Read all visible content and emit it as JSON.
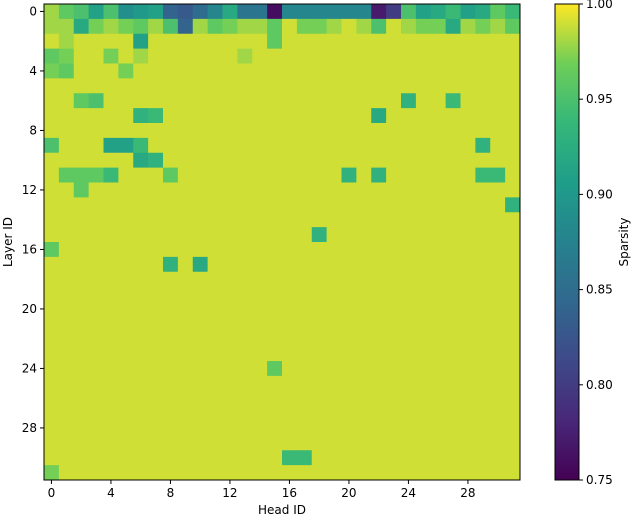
{
  "chart_data": {
    "type": "heatmap",
    "title": "",
    "xlabel": "Head ID",
    "ylabel": "Layer ID",
    "x_ticks": [
      "0",
      "4",
      "8",
      "12",
      "16",
      "20",
      "24",
      "28"
    ],
    "y_ticks": [
      "0",
      "4",
      "8",
      "12",
      "16",
      "20",
      "24",
      "28"
    ],
    "x_tick_values": [
      0,
      4,
      8,
      12,
      16,
      20,
      24,
      28
    ],
    "y_tick_values": [
      0,
      4,
      8,
      12,
      16,
      20,
      24,
      28
    ],
    "rows": 32,
    "cols": 32,
    "colormap": "viridis",
    "colorbar": {
      "label": "Sparsity",
      "range": [
        0.75,
        1.0
      ],
      "ticks": [
        "0.75",
        "0.80",
        "0.85",
        "0.90",
        "0.95",
        "1.00"
      ],
      "tick_values": [
        0.75,
        0.8,
        0.85,
        0.9,
        0.95,
        1.0
      ]
    },
    "values": [
      [
        0.98,
        0.96,
        0.95,
        0.91,
        0.95,
        0.89,
        0.9,
        0.91,
        0.84,
        0.83,
        0.85,
        0.88,
        0.92,
        0.86,
        0.86,
        0.76,
        0.88,
        0.88,
        0.88,
        0.88,
        0.88,
        0.88,
        0.77,
        0.8,
        0.95,
        0.91,
        0.92,
        0.94,
        0.91,
        0.92,
        0.96,
        0.94
      ],
      [
        0.98,
        0.98,
        0.92,
        0.97,
        0.98,
        0.97,
        0.96,
        0.98,
        0.95,
        0.84,
        0.98,
        0.96,
        0.97,
        0.98,
        0.98,
        0.96,
        0.99,
        0.97,
        0.97,
        0.98,
        0.99,
        0.98,
        0.95,
        0.99,
        0.98,
        0.97,
        0.97,
        0.92,
        0.98,
        0.97,
        0.98,
        0.96
      ],
      [
        0.99,
        0.98,
        0.99,
        0.99,
        0.99,
        0.99,
        0.91,
        0.99,
        0.99,
        0.99,
        0.99,
        0.99,
        0.99,
        0.99,
        0.99,
        0.96,
        0.99,
        0.99,
        0.99,
        0.99,
        0.99,
        0.99,
        0.99,
        0.99,
        0.99,
        0.99,
        0.99,
        0.99,
        0.99,
        0.99,
        0.99,
        0.99
      ],
      [
        0.96,
        0.97,
        0.99,
        0.99,
        0.97,
        0.99,
        0.98,
        0.99,
        0.99,
        0.99,
        0.99,
        0.99,
        0.99,
        0.98,
        0.99,
        0.99,
        0.99,
        0.99,
        0.99,
        0.99,
        0.99,
        0.99,
        0.99,
        0.99,
        0.99,
        0.99,
        0.99,
        0.99,
        0.99,
        0.99,
        0.99,
        0.99
      ],
      [
        0.97,
        0.96,
        0.99,
        0.99,
        0.99,
        0.97,
        0.99,
        0.99,
        0.99,
        0.99,
        0.99,
        0.99,
        0.99,
        0.99,
        0.99,
        0.99,
        0.99,
        0.99,
        0.99,
        0.99,
        0.99,
        0.99,
        0.99,
        0.99,
        0.99,
        0.99,
        0.99,
        0.99,
        0.99,
        0.99,
        0.99,
        0.99
      ],
      [
        0.99,
        0.99,
        0.99,
        0.99,
        0.99,
        0.99,
        0.99,
        0.99,
        0.99,
        0.99,
        0.99,
        0.99,
        0.99,
        0.99,
        0.99,
        0.99,
        0.99,
        0.99,
        0.99,
        0.99,
        0.99,
        0.99,
        0.99,
        0.99,
        0.99,
        0.99,
        0.99,
        0.99,
        0.99,
        0.99,
        0.99,
        0.99
      ],
      [
        0.99,
        0.99,
        0.96,
        0.95,
        0.99,
        0.99,
        0.99,
        0.99,
        0.99,
        0.99,
        0.99,
        0.99,
        0.99,
        0.99,
        0.99,
        0.99,
        0.99,
        0.99,
        0.99,
        0.99,
        0.99,
        0.99,
        0.99,
        0.99,
        0.93,
        0.99,
        0.99,
        0.94,
        0.99,
        0.99,
        0.99,
        0.99
      ],
      [
        0.99,
        0.99,
        0.99,
        0.99,
        0.99,
        0.99,
        0.93,
        0.94,
        0.99,
        0.99,
        0.99,
        0.99,
        0.99,
        0.99,
        0.99,
        0.99,
        0.99,
        0.99,
        0.99,
        0.99,
        0.99,
        0.99,
        0.92,
        0.99,
        0.99,
        0.99,
        0.99,
        0.99,
        0.99,
        0.99,
        0.99,
        0.99
      ],
      [
        0.99,
        0.99,
        0.99,
        0.99,
        0.99,
        0.99,
        0.99,
        0.99,
        0.99,
        0.99,
        0.99,
        0.99,
        0.99,
        0.99,
        0.99,
        0.99,
        0.99,
        0.99,
        0.99,
        0.99,
        0.99,
        0.99,
        0.99,
        0.99,
        0.99,
        0.99,
        0.99,
        0.99,
        0.99,
        0.99,
        0.99,
        0.99
      ],
      [
        0.95,
        0.99,
        0.99,
        0.99,
        0.91,
        0.91,
        0.94,
        0.99,
        0.99,
        0.99,
        0.99,
        0.99,
        0.99,
        0.99,
        0.99,
        0.99,
        0.99,
        0.99,
        0.99,
        0.99,
        0.99,
        0.99,
        0.99,
        0.99,
        0.99,
        0.99,
        0.99,
        0.99,
        0.99,
        0.93,
        0.99,
        0.99
      ],
      [
        0.99,
        0.99,
        0.99,
        0.99,
        0.99,
        0.99,
        0.92,
        0.93,
        0.99,
        0.99,
        0.99,
        0.99,
        0.99,
        0.99,
        0.99,
        0.99,
        0.99,
        0.99,
        0.99,
        0.99,
        0.99,
        0.99,
        0.99,
        0.99,
        0.99,
        0.99,
        0.99,
        0.99,
        0.99,
        0.99,
        0.99,
        0.99
      ],
      [
        0.99,
        0.96,
        0.96,
        0.96,
        0.94,
        0.99,
        0.99,
        0.99,
        0.96,
        0.99,
        0.99,
        0.99,
        0.99,
        0.99,
        0.99,
        0.99,
        0.99,
        0.99,
        0.99,
        0.99,
        0.93,
        0.99,
        0.93,
        0.99,
        0.99,
        0.99,
        0.99,
        0.99,
        0.99,
        0.94,
        0.94,
        0.99
      ],
      [
        0.99,
        0.99,
        0.96,
        0.99,
        0.99,
        0.99,
        0.99,
        0.99,
        0.99,
        0.99,
        0.99,
        0.99,
        0.99,
        0.99,
        0.99,
        0.99,
        0.99,
        0.99,
        0.99,
        0.99,
        0.99,
        0.99,
        0.99,
        0.99,
        0.99,
        0.99,
        0.99,
        0.99,
        0.99,
        0.99,
        0.99,
        0.99
      ],
      [
        0.99,
        0.99,
        0.99,
        0.99,
        0.99,
        0.99,
        0.99,
        0.99,
        0.99,
        0.99,
        0.99,
        0.99,
        0.99,
        0.99,
        0.99,
        0.99,
        0.99,
        0.99,
        0.99,
        0.99,
        0.99,
        0.99,
        0.99,
        0.99,
        0.99,
        0.99,
        0.99,
        0.99,
        0.99,
        0.99,
        0.99,
        0.93
      ],
      [
        0.99,
        0.99,
        0.99,
        0.99,
        0.99,
        0.99,
        0.99,
        0.99,
        0.99,
        0.99,
        0.99,
        0.99,
        0.99,
        0.99,
        0.99,
        0.99,
        0.99,
        0.99,
        0.99,
        0.99,
        0.99,
        0.99,
        0.99,
        0.99,
        0.99,
        0.99,
        0.99,
        0.99,
        0.99,
        0.99,
        0.99,
        0.99
      ],
      [
        0.99,
        0.99,
        0.99,
        0.99,
        0.99,
        0.99,
        0.99,
        0.99,
        0.99,
        0.99,
        0.99,
        0.99,
        0.99,
        0.99,
        0.99,
        0.99,
        0.99,
        0.99,
        0.93,
        0.99,
        0.99,
        0.99,
        0.99,
        0.99,
        0.99,
        0.99,
        0.99,
        0.99,
        0.99,
        0.99,
        0.99,
        0.99
      ],
      [
        0.96,
        0.99,
        0.99,
        0.99,
        0.99,
        0.99,
        0.99,
        0.99,
        0.99,
        0.99,
        0.99,
        0.99,
        0.99,
        0.99,
        0.99,
        0.99,
        0.99,
        0.99,
        0.99,
        0.99,
        0.99,
        0.99,
        0.99,
        0.99,
        0.99,
        0.99,
        0.99,
        0.99,
        0.99,
        0.99,
        0.99,
        0.99
      ],
      [
        0.99,
        0.99,
        0.99,
        0.99,
        0.99,
        0.99,
        0.99,
        0.99,
        0.93,
        0.99,
        0.92,
        0.99,
        0.99,
        0.99,
        0.99,
        0.99,
        0.99,
        0.99,
        0.99,
        0.99,
        0.99,
        0.99,
        0.99,
        0.99,
        0.99,
        0.99,
        0.99,
        0.99,
        0.99,
        0.99,
        0.99,
        0.99
      ],
      [
        0.99,
        0.99,
        0.99,
        0.99,
        0.99,
        0.99,
        0.99,
        0.99,
        0.99,
        0.99,
        0.99,
        0.99,
        0.99,
        0.99,
        0.99,
        0.99,
        0.99,
        0.99,
        0.99,
        0.99,
        0.99,
        0.99,
        0.99,
        0.99,
        0.99,
        0.99,
        0.99,
        0.99,
        0.99,
        0.99,
        0.99,
        0.99
      ],
      [
        0.99,
        0.99,
        0.99,
        0.99,
        0.99,
        0.99,
        0.99,
        0.99,
        0.99,
        0.99,
        0.99,
        0.99,
        0.99,
        0.99,
        0.99,
        0.99,
        0.99,
        0.99,
        0.99,
        0.99,
        0.99,
        0.99,
        0.99,
        0.99,
        0.99,
        0.99,
        0.99,
        0.99,
        0.99,
        0.99,
        0.99,
        0.99
      ],
      [
        0.99,
        0.99,
        0.99,
        0.99,
        0.99,
        0.99,
        0.99,
        0.99,
        0.99,
        0.99,
        0.99,
        0.99,
        0.99,
        0.99,
        0.99,
        0.99,
        0.99,
        0.99,
        0.99,
        0.99,
        0.99,
        0.99,
        0.99,
        0.99,
        0.99,
        0.99,
        0.99,
        0.99,
        0.99,
        0.99,
        0.99,
        0.99
      ],
      [
        0.99,
        0.99,
        0.99,
        0.99,
        0.99,
        0.99,
        0.99,
        0.99,
        0.99,
        0.99,
        0.99,
        0.99,
        0.99,
        0.99,
        0.99,
        0.99,
        0.99,
        0.99,
        0.99,
        0.99,
        0.99,
        0.99,
        0.99,
        0.99,
        0.99,
        0.99,
        0.99,
        0.99,
        0.99,
        0.99,
        0.99,
        0.99
      ],
      [
        0.99,
        0.99,
        0.99,
        0.99,
        0.99,
        0.99,
        0.99,
        0.99,
        0.99,
        0.99,
        0.99,
        0.99,
        0.99,
        0.99,
        0.99,
        0.99,
        0.99,
        0.99,
        0.99,
        0.99,
        0.99,
        0.99,
        0.99,
        0.99,
        0.99,
        0.99,
        0.99,
        0.99,
        0.99,
        0.99,
        0.99,
        0.99
      ],
      [
        0.99,
        0.99,
        0.99,
        0.99,
        0.99,
        0.99,
        0.99,
        0.99,
        0.99,
        0.99,
        0.99,
        0.99,
        0.99,
        0.99,
        0.99,
        0.99,
        0.99,
        0.99,
        0.99,
        0.99,
        0.99,
        0.99,
        0.99,
        0.99,
        0.99,
        0.99,
        0.99,
        0.99,
        0.99,
        0.99,
        0.99,
        0.99
      ],
      [
        0.99,
        0.99,
        0.99,
        0.99,
        0.99,
        0.99,
        0.99,
        0.99,
        0.99,
        0.99,
        0.99,
        0.99,
        0.99,
        0.99,
        0.99,
        0.96,
        0.99,
        0.99,
        0.99,
        0.99,
        0.99,
        0.99,
        0.99,
        0.99,
        0.99,
        0.99,
        0.99,
        0.99,
        0.99,
        0.99,
        0.99,
        0.99
      ],
      [
        0.99,
        0.99,
        0.99,
        0.99,
        0.99,
        0.99,
        0.99,
        0.99,
        0.99,
        0.99,
        0.99,
        0.99,
        0.99,
        0.99,
        0.99,
        0.99,
        0.99,
        0.99,
        0.99,
        0.99,
        0.99,
        0.99,
        0.99,
        0.99,
        0.99,
        0.99,
        0.99,
        0.99,
        0.99,
        0.99,
        0.99,
        0.99
      ],
      [
        0.99,
        0.99,
        0.99,
        0.99,
        0.99,
        0.99,
        0.99,
        0.99,
        0.99,
        0.99,
        0.99,
        0.99,
        0.99,
        0.99,
        0.99,
        0.99,
        0.99,
        0.99,
        0.99,
        0.99,
        0.99,
        0.99,
        0.99,
        0.99,
        0.99,
        0.99,
        0.99,
        0.99,
        0.99,
        0.99,
        0.99,
        0.99
      ],
      [
        0.99,
        0.99,
        0.99,
        0.99,
        0.99,
        0.99,
        0.99,
        0.99,
        0.99,
        0.99,
        0.99,
        0.99,
        0.99,
        0.99,
        0.99,
        0.99,
        0.99,
        0.99,
        0.99,
        0.99,
        0.99,
        0.99,
        0.99,
        0.99,
        0.99,
        0.99,
        0.99,
        0.99,
        0.99,
        0.99,
        0.99,
        0.99
      ],
      [
        0.99,
        0.99,
        0.99,
        0.99,
        0.99,
        0.99,
        0.99,
        0.99,
        0.99,
        0.99,
        0.99,
        0.99,
        0.99,
        0.99,
        0.99,
        0.99,
        0.99,
        0.99,
        0.99,
        0.99,
        0.99,
        0.99,
        0.99,
        0.99,
        0.99,
        0.99,
        0.99,
        0.99,
        0.99,
        0.99,
        0.99,
        0.99
      ],
      [
        0.99,
        0.99,
        0.99,
        0.99,
        0.99,
        0.99,
        0.99,
        0.99,
        0.99,
        0.99,
        0.99,
        0.99,
        0.99,
        0.99,
        0.99,
        0.99,
        0.99,
        0.99,
        0.99,
        0.99,
        0.99,
        0.99,
        0.99,
        0.99,
        0.99,
        0.99,
        0.99,
        0.99,
        0.99,
        0.99,
        0.99,
        0.99
      ],
      [
        0.99,
        0.99,
        0.99,
        0.99,
        0.99,
        0.99,
        0.99,
        0.99,
        0.99,
        0.99,
        0.99,
        0.99,
        0.99,
        0.99,
        0.99,
        0.99,
        0.94,
        0.94,
        0.99,
        0.99,
        0.99,
        0.99,
        0.99,
        0.99,
        0.99,
        0.99,
        0.99,
        0.99,
        0.99,
        0.99,
        0.99,
        0.99
      ],
      [
        0.97,
        0.99,
        0.99,
        0.99,
        0.99,
        0.99,
        0.99,
        0.99,
        0.99,
        0.99,
        0.99,
        0.99,
        0.99,
        0.99,
        0.99,
        0.99,
        0.99,
        0.99,
        0.99,
        0.99,
        0.99,
        0.99,
        0.99,
        0.99,
        0.99,
        0.99,
        0.99,
        0.99,
        0.99,
        0.99,
        0.99,
        0.99
      ]
    ]
  }
}
